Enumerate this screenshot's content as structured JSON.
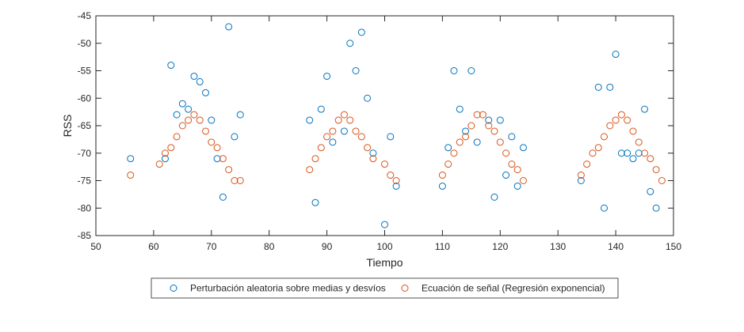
{
  "chart_data": {
    "type": "scatter",
    "title": "",
    "xlabel": "Tiempo",
    "ylabel": "RSS",
    "xlim": [
      50,
      150
    ],
    "ylim": [
      -85,
      -45
    ],
    "xticks": [
      50,
      60,
      70,
      80,
      90,
      100,
      110,
      120,
      130,
      140,
      150
    ],
    "yticks": [
      -85,
      -80,
      -75,
      -70,
      -65,
      -60,
      -55,
      -50,
      -45
    ],
    "grid": false,
    "legend_placement": "bottom-center",
    "series": [
      {
        "name": "Perturbación aleatoria sobre medias y desvíos",
        "color": "#0072BD",
        "marker": "circle-open",
        "points": [
          [
            56,
            -71
          ],
          [
            62,
            -71
          ],
          [
            63,
            -54
          ],
          [
            64,
            -63
          ],
          [
            65,
            -61
          ],
          [
            66,
            -62
          ],
          [
            67,
            -56
          ],
          [
            68,
            -57
          ],
          [
            69,
            -59
          ],
          [
            70,
            -64
          ],
          [
            71,
            -71
          ],
          [
            72,
            -78
          ],
          [
            73,
            -47
          ],
          [
            74,
            -67
          ],
          [
            75,
            -63
          ],
          [
            87,
            -64
          ],
          [
            88,
            -79
          ],
          [
            89,
            -62
          ],
          [
            90,
            -56
          ],
          [
            91,
            -68
          ],
          [
            93,
            -66
          ],
          [
            94,
            -50
          ],
          [
            95,
            -55
          ],
          [
            96,
            -48
          ],
          [
            97,
            -60
          ],
          [
            98,
            -70
          ],
          [
            100,
            -83
          ],
          [
            101,
            -67
          ],
          [
            102,
            -76
          ],
          [
            110,
            -76
          ],
          [
            111,
            -69
          ],
          [
            112,
            -55
          ],
          [
            113,
            -62
          ],
          [
            114,
            -66
          ],
          [
            115,
            -55
          ],
          [
            116,
            -68
          ],
          [
            118,
            -64
          ],
          [
            119,
            -78
          ],
          [
            120,
            -64
          ],
          [
            121,
            -74
          ],
          [
            122,
            -67
          ],
          [
            123,
            -76
          ],
          [
            124,
            -69
          ],
          [
            134,
            -75
          ],
          [
            137,
            -58
          ],
          [
            138,
            -80
          ],
          [
            139,
            -58
          ],
          [
            140,
            -52
          ],
          [
            141,
            -70
          ],
          [
            142,
            -70
          ],
          [
            143,
            -71
          ],
          [
            144,
            -70
          ],
          [
            145,
            -62
          ],
          [
            146,
            -77
          ],
          [
            147,
            -80
          ]
        ]
      },
      {
        "name": "Ecuación de señal (Regresión exponencial)",
        "color": "#D95319",
        "marker": "circle-open",
        "points": [
          [
            56,
            -74
          ],
          [
            61,
            -72
          ],
          [
            62,
            -70
          ],
          [
            63,
            -69
          ],
          [
            64,
            -67
          ],
          [
            65,
            -65
          ],
          [
            66,
            -64
          ],
          [
            67,
            -63
          ],
          [
            68,
            -64
          ],
          [
            69,
            -66
          ],
          [
            70,
            -68
          ],
          [
            71,
            -69
          ],
          [
            72,
            -71
          ],
          [
            73,
            -73
          ],
          [
            74,
            -75
          ],
          [
            75,
            -75
          ],
          [
            87,
            -73
          ],
          [
            88,
            -71
          ],
          [
            89,
            -69
          ],
          [
            90,
            -67
          ],
          [
            91,
            -66
          ],
          [
            92,
            -64
          ],
          [
            93,
            -63
          ],
          [
            94,
            -64
          ],
          [
            95,
            -66
          ],
          [
            96,
            -67
          ],
          [
            97,
            -69
          ],
          [
            98,
            -71
          ],
          [
            100,
            -72
          ],
          [
            101,
            -74
          ],
          [
            102,
            -75
          ],
          [
            110,
            -74
          ],
          [
            111,
            -72
          ],
          [
            112,
            -70
          ],
          [
            113,
            -68
          ],
          [
            114,
            -67
          ],
          [
            115,
            -65
          ],
          [
            116,
            -63
          ],
          [
            117,
            -63
          ],
          [
            118,
            -65
          ],
          [
            119,
            -66
          ],
          [
            120,
            -68
          ],
          [
            121,
            -70
          ],
          [
            122,
            -72
          ],
          [
            123,
            -73
          ],
          [
            124,
            -75
          ],
          [
            134,
            -74
          ],
          [
            135,
            -72
          ],
          [
            136,
            -70
          ],
          [
            137,
            -69
          ],
          [
            138,
            -67
          ],
          [
            139,
            -65
          ],
          [
            140,
            -64
          ],
          [
            141,
            -63
          ],
          [
            142,
            -64
          ],
          [
            143,
            -66
          ],
          [
            144,
            -68
          ],
          [
            145,
            -70
          ],
          [
            146,
            -71
          ],
          [
            147,
            -73
          ],
          [
            148,
            -75
          ]
        ]
      }
    ]
  }
}
